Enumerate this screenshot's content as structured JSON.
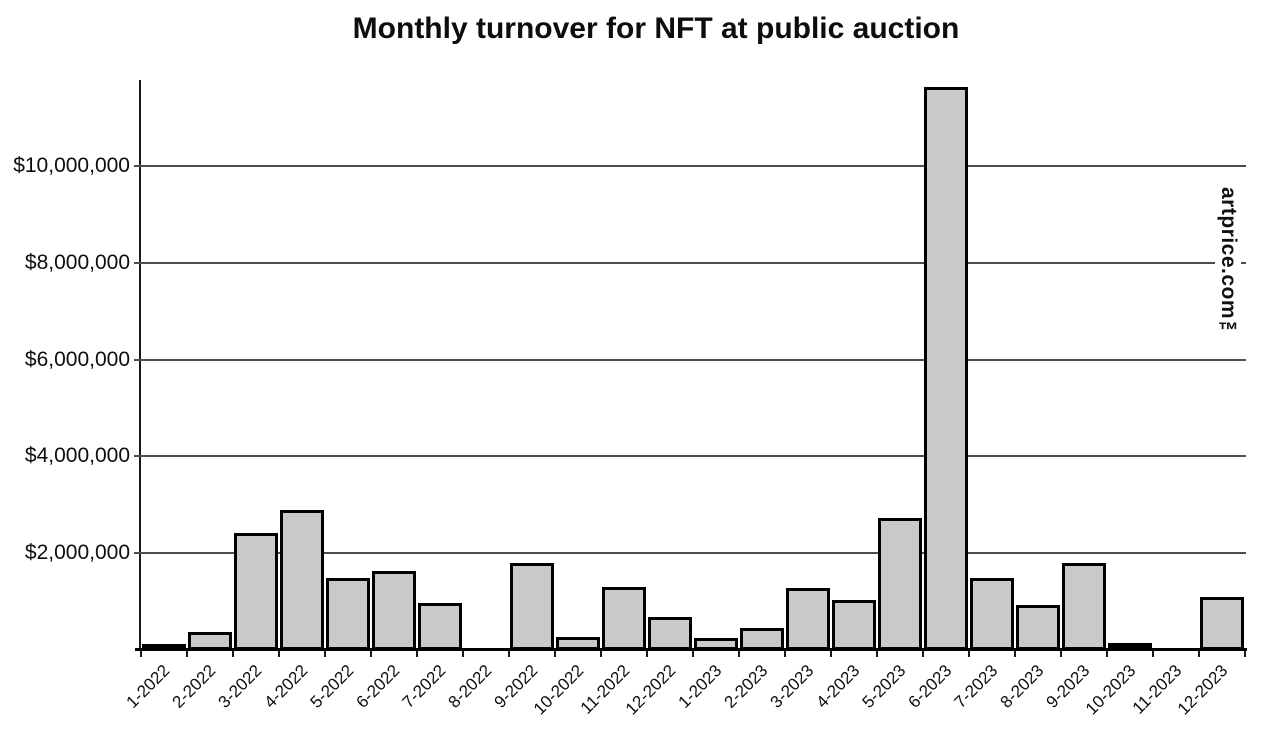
{
  "chart_data": {
    "type": "bar",
    "title": "Monthly turnover for NFT at public auction",
    "categories": [
      "1-2022",
      "2-2022",
      "3-2022",
      "4-2022",
      "5-2022",
      "6-2022",
      "7-2022",
      "8-2022",
      "9-2022",
      "10-2022",
      "11-2022",
      "12-2022",
      "1-2023",
      "2-2023",
      "3-2023",
      "4-2023",
      "5-2023",
      "6-2023",
      "7-2023",
      "8-2023",
      "9-2023",
      "10-2023",
      "11-2023",
      "12-2023"
    ],
    "values": [
      100000,
      370000,
      2420000,
      2890000,
      1490000,
      1630000,
      970000,
      30000,
      1800000,
      270000,
      1300000,
      680000,
      250000,
      450000,
      1280000,
      1030000,
      2730000,
      11630000,
      1490000,
      930000,
      1800000,
      120000,
      0,
      1090000
    ],
    "ytick_labels": [
      "$2,000,000",
      "$4,000,000",
      "$6,000,000",
      "$8,000,000",
      "$10,000,000"
    ],
    "ytick_values": [
      2000000,
      4000000,
      6000000,
      8000000,
      10000000
    ],
    "ylim": [
      0,
      11800000
    ],
    "xlabel": "",
    "ylabel": "",
    "grid": "horizontal",
    "legend": "none",
    "watermark": "artprice.com™"
  },
  "colors": {
    "background": "#ffffff",
    "bar_fill": "#c9c9c9",
    "bar_border": "#000000",
    "gridline": "#4d4d4d",
    "axis": "#1a1a1a",
    "text": "#0d0d0d"
  }
}
